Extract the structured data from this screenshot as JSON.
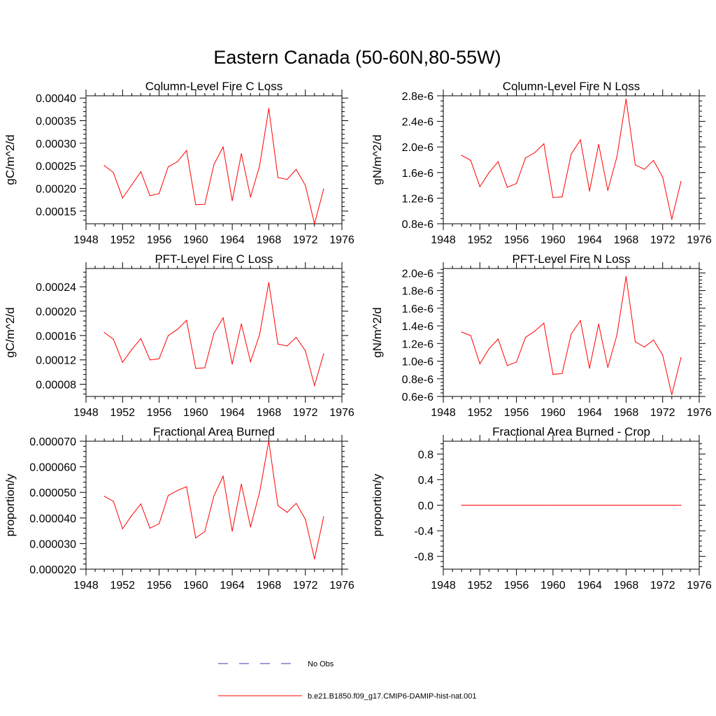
{
  "figure": {
    "title": "Eastern Canada (50-60N,80-55W)"
  },
  "legend": {
    "items": [
      {
        "label": "No Obs",
        "color": "#3b3bb3",
        "dash": "dashed"
      },
      {
        "label": "b.e21.B1850.f09_g17.CMIP6-DAMIP-hist-nat.001",
        "color": "#ff0000",
        "dash": "solid"
      }
    ]
  },
  "chart_data": [
    {
      "type": "line",
      "title": "Column-Level Fire C Loss",
      "ylabel": "gC/m^2/d",
      "xlim": [
        1948,
        1976
      ],
      "ylim": [
        0.000122,
        0.000405
      ],
      "xticks": [
        1948,
        1952,
        1956,
        1960,
        1964,
        1968,
        1972,
        1976
      ],
      "xtick_labels": [
        "1948",
        "1952",
        "1956",
        "1960",
        "1964",
        "1968",
        "1972",
        "1976"
      ],
      "yticks": [
        0.00015,
        0.0002,
        0.00025,
        0.0003,
        0.00035,
        0.0004
      ],
      "ytick_labels": [
        "0.00015",
        "0.00020",
        "0.00025",
        "0.00030",
        "0.00035",
        "0.00040"
      ],
      "series": [
        {
          "name": "b.e21.B1850.f09_g17.CMIP6-DAMIP-hist-nat.001",
          "color": "#ff0000",
          "x": [
            1950,
            1951,
            1952,
            1953,
            1954,
            1955,
            1956,
            1957,
            1958,
            1959,
            1960,
            1961,
            1962,
            1963,
            1964,
            1965,
            1966,
            1967,
            1968,
            1969,
            1970,
            1971,
            1972,
            1973,
            1974
          ],
          "y": [
            0.000251,
            0.000235,
            0.000179,
            0.000208,
            0.000237,
            0.000184,
            0.000189,
            0.000248,
            0.000259,
            0.000284,
            0.000164,
            0.000165,
            0.000253,
            0.000292,
            0.000173,
            0.000277,
            0.000181,
            0.000251,
            0.000377,
            0.000224,
            0.00022,
            0.000242,
            0.000207,
            0.000122,
            0.000199
          ]
        }
      ]
    },
    {
      "type": "line",
      "title": "Column-Level Fire N Loss",
      "ylabel": "gN/m^2/d",
      "xlim": [
        1948,
        1976
      ],
      "ylim": [
        8e-07,
        2.8e-06
      ],
      "xticks": [
        1948,
        1952,
        1956,
        1960,
        1964,
        1968,
        1972,
        1976
      ],
      "xtick_labels": [
        "1948",
        "1952",
        "1956",
        "1960",
        "1964",
        "1968",
        "1972",
        "1976"
      ],
      "yticks": [
        8e-07,
        1.2e-06,
        1.6e-06,
        2e-06,
        2.4e-06,
        2.8e-06
      ],
      "ytick_labels": [
        "0.8e-6",
        "1.2e-6",
        "1.6e-6",
        "2.0e-6",
        "2.4e-6",
        "2.8e-6"
      ],
      "series": [
        {
          "name": "b.e21.B1850.f09_g17.CMIP6-DAMIP-hist-nat.001",
          "color": "#ff0000",
          "x": [
            1950,
            1951,
            1952,
            1953,
            1954,
            1955,
            1956,
            1957,
            1958,
            1959,
            1960,
            1961,
            1962,
            1963,
            1964,
            1965,
            1966,
            1967,
            1968,
            1969,
            1970,
            1971,
            1972,
            1973,
            1974
          ],
          "y": [
            1.87e-06,
            1.79e-06,
            1.38e-06,
            1.6e-06,
            1.77e-06,
            1.37e-06,
            1.43e-06,
            1.83e-06,
            1.91e-06,
            2.05e-06,
            1.21e-06,
            1.22e-06,
            1.89e-06,
            2.11e-06,
            1.31e-06,
            2.04e-06,
            1.32e-06,
            1.85e-06,
            2.75e-06,
            1.72e-06,
            1.65e-06,
            1.79e-06,
            1.53e-06,
            8.7e-07,
            1.46e-06
          ]
        }
      ]
    },
    {
      "type": "line",
      "title": "PFT-Level Fire C Loss",
      "ylabel": "gC/m^2/d",
      "xlim": [
        1948,
        1976
      ],
      "ylim": [
        6e-05,
        0.00027
      ],
      "xticks": [
        1948,
        1952,
        1956,
        1960,
        1964,
        1968,
        1972,
        1976
      ],
      "xtick_labels": [
        "1948",
        "1952",
        "1956",
        "1960",
        "1964",
        "1968",
        "1972",
        "1976"
      ],
      "yticks": [
        8e-05,
        0.00012,
        0.00016,
        0.0002,
        0.00024
      ],
      "ytick_labels": [
        "0.00008",
        "0.00012",
        "0.00016",
        "0.00020",
        "0.00024"
      ],
      "series": [
        {
          "name": "b.e21.B1850.f09_g17.CMIP6-DAMIP-hist-nat.001",
          "color": "#ff0000",
          "x": [
            1950,
            1951,
            1952,
            1953,
            1954,
            1955,
            1956,
            1957,
            1958,
            1959,
            1960,
            1961,
            1962,
            1963,
            1964,
            1965,
            1966,
            1967,
            1968,
            1969,
            1970,
            1971,
            1972,
            1973,
            1974
          ],
          "y": [
            0.000165,
            0.000154,
            0.000116,
            0.000137,
            0.000155,
            0.00012,
            0.000122,
            0.00016,
            0.00017,
            0.000185,
            0.000106,
            0.000107,
            0.000164,
            0.000189,
            0.000113,
            0.000179,
            0.000117,
            0.000162,
            0.000247,
            0.000146,
            0.000143,
            0.000157,
            0.000135,
            7.8e-05,
            0.00013
          ]
        }
      ]
    },
    {
      "type": "line",
      "title": "PFT-Level Fire N Loss",
      "ylabel": "gN/m^2/d",
      "xlim": [
        1948,
        1976
      ],
      "ylim": [
        6e-07,
        2.05e-06
      ],
      "xticks": [
        1948,
        1952,
        1956,
        1960,
        1964,
        1968,
        1972,
        1976
      ],
      "xtick_labels": [
        "1948",
        "1952",
        "1956",
        "1960",
        "1964",
        "1968",
        "1972",
        "1976"
      ],
      "yticks": [
        6e-07,
        8e-07,
        1e-06,
        1.2e-06,
        1.4e-06,
        1.6e-06,
        1.8e-06,
        2e-06
      ],
      "ytick_labels": [
        "0.6e-6",
        "0.8e-6",
        "1.0e-6",
        "1.2e-6",
        "1.4e-6",
        "1.6e-6",
        "1.8e-6",
        "2.0e-6"
      ],
      "series": [
        {
          "name": "b.e21.B1850.f09_g17.CMIP6-DAMIP-hist-nat.001",
          "color": "#ff0000",
          "x": [
            1950,
            1951,
            1952,
            1953,
            1954,
            1955,
            1956,
            1957,
            1958,
            1959,
            1960,
            1961,
            1962,
            1963,
            1964,
            1965,
            1966,
            1967,
            1968,
            1969,
            1970,
            1971,
            1972,
            1973,
            1974
          ],
          "y": [
            1.33e-06,
            1.29e-06,
            9.7e-07,
            1.14e-06,
            1.25e-06,
            9.5e-07,
            9.9e-07,
            1.27e-06,
            1.34e-06,
            1.43e-06,
            8.5e-07,
            8.6e-07,
            1.31e-06,
            1.46e-06,
            9.2e-07,
            1.42e-06,
            9.3e-07,
            1.3e-06,
            1.96e-06,
            1.22e-06,
            1.16e-06,
            1.24e-06,
            1.07e-06,
            6.2e-07,
            1.04e-06
          ]
        }
      ]
    },
    {
      "type": "line",
      "title": "Fractional Area Burned",
      "ylabel": "proportion/y",
      "xlim": [
        1948,
        1976
      ],
      "ylim": [
        2e-05,
        7e-05
      ],
      "xticks": [
        1948,
        1952,
        1956,
        1960,
        1964,
        1968,
        1972,
        1976
      ],
      "xtick_labels": [
        "1948",
        "1952",
        "1956",
        "1960",
        "1964",
        "1968",
        "1972",
        "1976"
      ],
      "yticks": [
        2e-05,
        3e-05,
        4e-05,
        5e-05,
        6e-05,
        7e-05
      ],
      "ytick_labels": [
        "0.000020",
        "0.000030",
        "0.000040",
        "0.000050",
        "0.000060",
        "0.000070"
      ],
      "series": [
        {
          "name": "b.e21.B1850.f09_g17.CMIP6-DAMIP-hist-nat.001",
          "color": "#ff0000",
          "x": [
            1950,
            1951,
            1952,
            1953,
            1954,
            1955,
            1956,
            1957,
            1958,
            1959,
            1960,
            1961,
            1962,
            1963,
            1964,
            1965,
            1966,
            1967,
            1968,
            1969,
            1970,
            1971,
            1972,
            1973,
            1974
          ],
          "y": [
            4.85e-05,
            4.65e-05,
            3.58e-05,
            4.1e-05,
            4.55e-05,
            3.6e-05,
            3.78e-05,
            4.88e-05,
            5.07e-05,
            5.22e-05,
            3.22e-05,
            3.47e-05,
            4.87e-05,
            5.63e-05,
            3.48e-05,
            5.32e-05,
            3.65e-05,
            5.02e-05,
            7e-05,
            4.48e-05,
            4.22e-05,
            4.57e-05,
            3.95e-05,
            2.4e-05,
            4.05e-05
          ]
        }
      ]
    },
    {
      "type": "line",
      "title": "Fractional Area Burned - Crop",
      "ylabel": "proportion/y",
      "xlim": [
        1948,
        1976
      ],
      "ylim": [
        -1.0,
        1.0
      ],
      "xticks": [
        1948,
        1952,
        1956,
        1960,
        1964,
        1968,
        1972,
        1976
      ],
      "xtick_labels": [
        "1948",
        "1952",
        "1956",
        "1960",
        "1964",
        "1968",
        "1972",
        "1976"
      ],
      "yticks": [
        -0.8,
        -0.4,
        0.0,
        0.4,
        0.8
      ],
      "ytick_labels": [
        "-0.8",
        "-0.4",
        "0.0",
        "0.4",
        "0.8"
      ],
      "series": [
        {
          "name": "b.e21.B1850.f09_g17.CMIP6-DAMIP-hist-nat.001",
          "color": "#ff0000",
          "x": [
            1950,
            1951,
            1952,
            1953,
            1954,
            1955,
            1956,
            1957,
            1958,
            1959,
            1960,
            1961,
            1962,
            1963,
            1964,
            1965,
            1966,
            1967,
            1968,
            1969,
            1970,
            1971,
            1972,
            1973,
            1974
          ],
          "y": [
            0,
            0,
            0,
            0,
            0,
            0,
            0,
            0,
            0,
            0,
            0,
            0,
            0,
            0,
            0,
            0,
            0,
            0,
            0,
            0,
            0,
            0,
            0,
            0,
            0
          ]
        }
      ]
    }
  ]
}
